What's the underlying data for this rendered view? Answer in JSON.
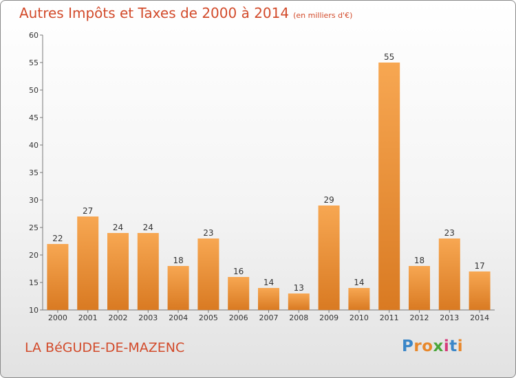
{
  "title": "Autres Impôts et Taxes de 2000 à 2014",
  "subtitle": "(en milliers d'€)",
  "place": "LA BéGUDE-DE-MAZENC",
  "brand": {
    "text": "Proxiti",
    "letters": [
      "P",
      "r",
      "o",
      "x",
      "i",
      "t",
      "i"
    ]
  },
  "colors": {
    "bar_light": "#f7a752",
    "bar_dark": "#d97a22",
    "title": "#d24a2a"
  },
  "chart_data": {
    "type": "bar",
    "categories": [
      "2000",
      "2001",
      "2002",
      "2003",
      "2004",
      "2005",
      "2006",
      "2007",
      "2008",
      "2009",
      "2010",
      "2011",
      "2012",
      "2013",
      "2014"
    ],
    "values": [
      22,
      27,
      24,
      24,
      18,
      23,
      16,
      14,
      13,
      29,
      14,
      55,
      18,
      23,
      17
    ],
    "ylim": [
      10,
      60
    ],
    "yticks": [
      10,
      15,
      20,
      25,
      30,
      35,
      40,
      45,
      50,
      55,
      60
    ],
    "grid": false
  }
}
